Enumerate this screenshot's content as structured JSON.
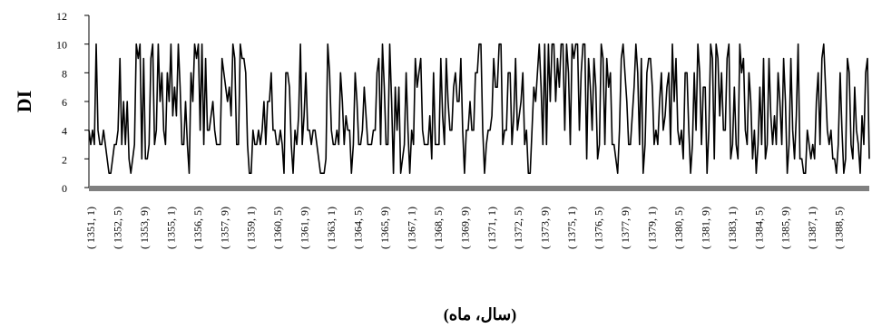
{
  "chart_data": {
    "type": "line",
    "title": "",
    "ylabel": "DI",
    "xlabel": "(سال، ماه)",
    "ylim": [
      0,
      12
    ],
    "yticks": [
      0,
      2,
      4,
      6,
      8,
      10,
      12
    ],
    "grid": false,
    "legend": "none",
    "x_tick_labels": [
      "( 1351, 1)",
      "( 1352, 5)",
      "( 1353, 9)",
      "( 1355, 1)",
      "( 1356, 5)",
      "( 1357, 9)",
      "( 1359, 1)",
      "( 1360, 5)",
      "( 1361, 9)",
      "( 1363, 1)",
      "( 1364, 5)",
      "( 1365, 9)",
      "( 1367, 1)",
      "( 1368, 5)",
      "( 1369, 9)",
      "( 1371, 1)",
      "( 1372, 5)",
      "( 1373, 9)",
      "( 1375, 1)",
      "( 1376, 5)",
      "( 1377, 9)",
      "( 1379, 1)",
      "( 1380, 5)",
      "( 1381, 9)",
      "( 1383, 1)",
      "( 1384, 5)",
      "( 1385, 9)",
      "( 1387, 1)",
      "( 1388, 5)"
    ],
    "series": [
      {
        "color": "#000000",
        "values": [
          4,
          3,
          4,
          3,
          10,
          4,
          3,
          3,
          4,
          3,
          2,
          1,
          1,
          2,
          3,
          3,
          4,
          9,
          3,
          6,
          3,
          6,
          2,
          1,
          2,
          3,
          10,
          9,
          10,
          2,
          9,
          2,
          2,
          3,
          9,
          10,
          3,
          4,
          10,
          6,
          8,
          4,
          3,
          8,
          6,
          10,
          5,
          7,
          5,
          10,
          7,
          3,
          3,
          6,
          3,
          1,
          8,
          6,
          10,
          9,
          10,
          4,
          10,
          3,
          9,
          4,
          4,
          5,
          6,
          4,
          3,
          3,
          3,
          9,
          8,
          7,
          6,
          7,
          5,
          10,
          9,
          3,
          3,
          10,
          9,
          9,
          8,
          3,
          1,
          1,
          4,
          3,
          3,
          4,
          3,
          4,
          6,
          3,
          6,
          6,
          8,
          4,
          4,
          3,
          3,
          4,
          3,
          1,
          8,
          8,
          7,
          3,
          1,
          4,
          3,
          5,
          10,
          3,
          5,
          8,
          4,
          4,
          3,
          4,
          4,
          3,
          2,
          1,
          1,
          1,
          2,
          10,
          8,
          4,
          3,
          3,
          4,
          3,
          8,
          6,
          3,
          5,
          4,
          4,
          1,
          3,
          8,
          6,
          3,
          3,
          4,
          7,
          5,
          3,
          3,
          3,
          4,
          4,
          8,
          9,
          3,
          10,
          7,
          3,
          3,
          10,
          6,
          1,
          7,
          4,
          7,
          1,
          2,
          3,
          8,
          4,
          1,
          4,
          3,
          9,
          7,
          8,
          9,
          4,
          3,
          3,
          3,
          5,
          2,
          8,
          3,
          3,
          3,
          9,
          5,
          3,
          9,
          6,
          4,
          4,
          7,
          8,
          6,
          6,
          9,
          4,
          1,
          4,
          4,
          6,
          4,
          4,
          8,
          8,
          10,
          10,
          4,
          1,
          3,
          4,
          4,
          5,
          9,
          7,
          7,
          10,
          10,
          3,
          4,
          4,
          8,
          8,
          3,
          5,
          9,
          4,
          5,
          6,
          8,
          3,
          4,
          1,
          1,
          4,
          7,
          6,
          8,
          10,
          7,
          3,
          10,
          3,
          10,
          6,
          10,
          10,
          6,
          9,
          7,
          10,
          10,
          4,
          10,
          8,
          3,
          10,
          9,
          10,
          10,
          4,
          8,
          10,
          10,
          2,
          9,
          7,
          4,
          9,
          7,
          2,
          3,
          10,
          9,
          3,
          9,
          7,
          8,
          3,
          3,
          2,
          1,
          4,
          9,
          10,
          8,
          6,
          3,
          3,
          5,
          7,
          10,
          8,
          3,
          9,
          1,
          3,
          8,
          9,
          9,
          7,
          3,
          4,
          3,
          6,
          8,
          4,
          5,
          7,
          8,
          3,
          10,
          6,
          9,
          4,
          3,
          4,
          2,
          8,
          8,
          4,
          1,
          3,
          8,
          4,
          10,
          8,
          3,
          7,
          7,
          1,
          4,
          10,
          9,
          2,
          10,
          9,
          5,
          8,
          4,
          4,
          9,
          10,
          2,
          3,
          7,
          3,
          2,
          10,
          8,
          9,
          4,
          3,
          8,
          6,
          2,
          4,
          1,
          3,
          7,
          3,
          9,
          2,
          3,
          9,
          5,
          3,
          5,
          3,
          8,
          6,
          3,
          9,
          6,
          1,
          3,
          9,
          4,
          2,
          5,
          10,
          2,
          2,
          1,
          1,
          4,
          3,
          2,
          3,
          2,
          6,
          8,
          3,
          9,
          10,
          7,
          4,
          3,
          4,
          2,
          2,
          1,
          3,
          8,
          4,
          1,
          2,
          9,
          8,
          3,
          2,
          7,
          4,
          3,
          1,
          5,
          3,
          8,
          9,
          2
        ]
      }
    ]
  }
}
